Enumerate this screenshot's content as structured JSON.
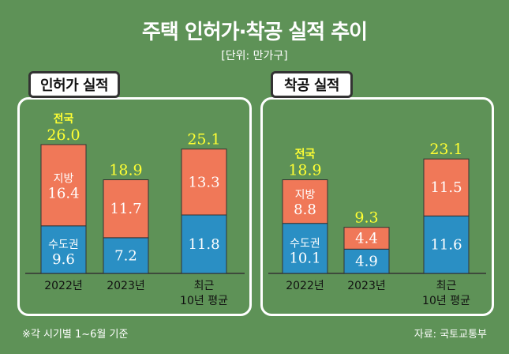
{
  "title": "주택 인허가·착공 실적 추이",
  "unit": "[단위: 만가구]",
  "footnote": "※각 시기별 1~6월 기준",
  "source": "자료: 국토교통부",
  "colors": {
    "background": "#5e9257",
    "capital": "#2a8fc4",
    "regional": "#f07858",
    "total_label": "#ffff33"
  },
  "chart_data": [
    {
      "type": "bar",
      "stacked": true,
      "title": "인허가 실적",
      "categories": [
        "2022년",
        "2023년",
        "최근\n10년 평균"
      ],
      "series": [
        {
          "name": "수도권",
          "values": [
            9.6,
            7.2,
            11.8
          ]
        },
        {
          "name": "지방",
          "values": [
            16.4,
            11.7,
            13.3
          ]
        }
      ],
      "totals": [
        26.0,
        18.9,
        25.1
      ],
      "value_labels": {
        "capital": [
          "9.6",
          "7.2",
          "11.8"
        ],
        "regional": [
          "16.4",
          "11.7",
          "13.3"
        ],
        "totals": [
          "26.0",
          "18.9",
          "25.1"
        ]
      },
      "total_prefix": "전국",
      "series_labels_first_bar": [
        "수도권",
        "지방"
      ],
      "ylim": [
        0,
        26.0
      ]
    },
    {
      "type": "bar",
      "stacked": true,
      "title": "착공 실적",
      "categories": [
        "2022년",
        "2023년",
        "최근\n10년 평균"
      ],
      "series": [
        {
          "name": "수도권",
          "values": [
            10.1,
            4.9,
            11.6
          ]
        },
        {
          "name": "지방",
          "values": [
            8.8,
            4.4,
            11.5
          ]
        }
      ],
      "totals": [
        18.9,
        9.3,
        23.1
      ],
      "value_labels": {
        "capital": [
          "10.1",
          "4.9",
          "11.6"
        ],
        "regional": [
          "8.8",
          "4.4",
          "11.5"
        ],
        "totals": [
          "18.9",
          "9.3",
          "23.1"
        ]
      },
      "total_prefix": "전국",
      "series_labels_first_bar": [
        "수도권",
        "지방"
      ],
      "ylim": [
        0,
        23.1
      ]
    }
  ]
}
